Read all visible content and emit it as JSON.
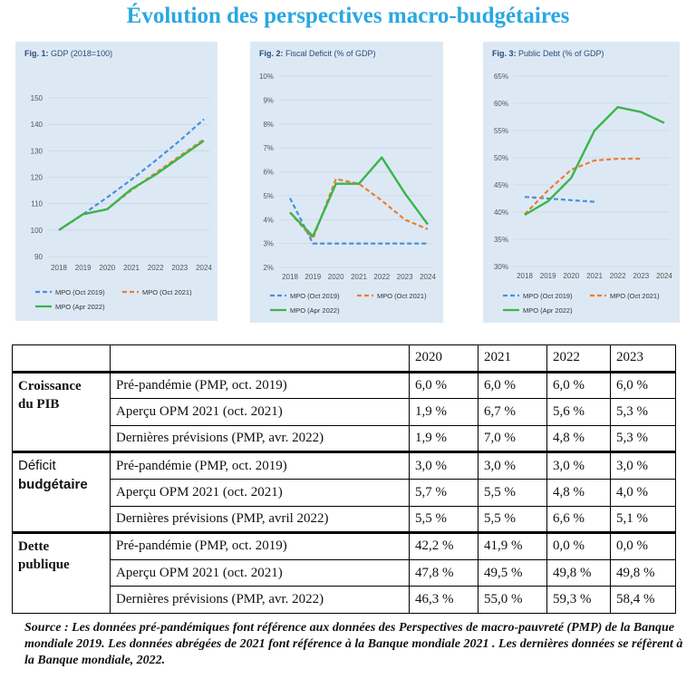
{
  "title": "Évolution des perspectives macro-budgétaires",
  "colors": {
    "oct2019": "#4a90d9",
    "oct2021": "#ed7d31",
    "apr2022": "#3cb44b",
    "panel_bg": "#dce9f5"
  },
  "chart_data": [
    {
      "type": "line",
      "fig_label": "Fig. 1:",
      "title": "GDP (2018=100)",
      "x": [
        "2018",
        "2019",
        "2020",
        "2021",
        "2022",
        "2023",
        "2024"
      ],
      "ylim": [
        90,
        150
      ],
      "yticks": [
        "90",
        "100",
        "110",
        "120",
        "130",
        "140",
        "150"
      ],
      "series": [
        {
          "name": "MPO (Oct 2019)",
          "style": "dashed",
          "color": "#4a90d9",
          "values": [
            100,
            106,
            112.4,
            119.1,
            126.3,
            133.8,
            141.9
          ]
        },
        {
          "name": "MPO (Oct 2021)",
          "style": "dashed",
          "color": "#ed7d31",
          "values": [
            100,
            106,
            107.9,
            115.1,
            121.6,
            128.0,
            134.3
          ]
        },
        {
          "name": "MPO (Apr 2022)",
          "style": "solid",
          "color": "#3cb44b",
          "values": [
            100,
            106,
            107.9,
            115.5,
            121.0,
            127.4,
            133.8
          ]
        }
      ]
    },
    {
      "type": "line",
      "fig_label": "Fig. 2:",
      "title": "Fiscal Deficit (% of GDP)",
      "x": [
        "2018",
        "2019",
        "2020",
        "2021",
        "2022",
        "2023",
        "2024"
      ],
      "ylim": [
        2,
        10
      ],
      "yticks": [
        "2%",
        "3%",
        "4%",
        "5%",
        "6%",
        "7%",
        "8%",
        "9%",
        "10%"
      ],
      "series": [
        {
          "name": "MPO (Oct 2019)",
          "style": "dashed",
          "color": "#4a90d9",
          "values": [
            4.9,
            3.0,
            3.0,
            3.0,
            3.0,
            3.0,
            3.0
          ]
        },
        {
          "name": "MPO (Oct 2021)",
          "style": "dashed",
          "color": "#ed7d31",
          "values": [
            4.3,
            3.2,
            5.7,
            5.5,
            4.8,
            4.0,
            3.6
          ]
        },
        {
          "name": "MPO (Apr 2022)",
          "style": "solid",
          "color": "#3cb44b",
          "values": [
            4.3,
            3.3,
            5.5,
            5.5,
            6.6,
            5.1,
            3.8
          ]
        }
      ]
    },
    {
      "type": "line",
      "fig_label": "Fig. 3:",
      "title": "Public Debt (% of GDP)",
      "x": [
        "2018",
        "2019",
        "2020",
        "2021",
        "2022",
        "2023",
        "2024"
      ],
      "ylim": [
        30,
        65
      ],
      "yticks": [
        "30%",
        "35%",
        "40%",
        "45%",
        "50%",
        "55%",
        "60%",
        "65%"
      ],
      "series": [
        {
          "name": "MPO (Oct 2019)",
          "style": "dashed",
          "color": "#4a90d9",
          "values": [
            42.8,
            42.5,
            42.2,
            41.9,
            null,
            null,
            null
          ]
        },
        {
          "name": "MPO (Oct 2021)",
          "style": "dashed",
          "color": "#ed7d31",
          "values": [
            39.6,
            44.0,
            47.8,
            49.5,
            49.8,
            49.8,
            null
          ]
        },
        {
          "name": "MPO (Apr 2022)",
          "style": "solid",
          "color": "#3cb44b",
          "values": [
            39.5,
            42.0,
            46.3,
            55.0,
            59.3,
            58.4,
            56.4
          ]
        }
      ]
    }
  ],
  "table": {
    "years": [
      "2020",
      "2021",
      "2022",
      "2023"
    ],
    "groups": [
      {
        "label_line1": "Croissance",
        "label_line2": "du PIB",
        "rows": [
          {
            "label": "Pré-pandémie (PMP, oct. 2019)",
            "values": [
              "6,0 %",
              "6,0 %",
              "6,0 %",
              "6,0 %"
            ]
          },
          {
            "label": "Aperçu OPM 2021 (oct. 2021)",
            "values": [
              "1,9 %",
              "6,7 %",
              "5,6 %",
              "5,3 %"
            ]
          },
          {
            "label": "Dernières prévisions (PMP, avr. 2022)",
            "values": [
              "1,9 %",
              "7,0 %",
              "4,8 %",
              "5,3 %"
            ]
          }
        ]
      },
      {
        "label_line1": "Déficit",
        "label_line2": "budgétaire",
        "rows": [
          {
            "label": "Pré-pandémie (PMP, oct. 2019)",
            "values": [
              "3,0 %",
              "3,0 %",
              "3,0 %",
              "3,0 %"
            ]
          },
          {
            "label": "Aperçu OPM 2021 (oct. 2021)",
            "values": [
              "5,7 %",
              "5,5 %",
              "4,8 %",
              "4,0 %"
            ]
          },
          {
            "label": "Dernières prévisions (PMP, avril 2022)",
            "values": [
              "5,5 %",
              "5,5 %",
              "6,6 %",
              "5,1 %"
            ]
          }
        ]
      },
      {
        "label_line1": "Dette",
        "label_line2": "publique",
        "rows": [
          {
            "label": "Pré-pandémie (PMP, oct. 2019)",
            "values": [
              "42,2 %",
              "41,9 %",
              "0,0 %",
              "0,0 %"
            ]
          },
          {
            "label": "Aperçu OPM 2021 (oct. 2021)",
            "values": [
              "47,8 %",
              "49,5 %",
              "49,8 %",
              "49,8 %"
            ]
          },
          {
            "label": "Dernières prévisions (PMP, avr. 2022)",
            "values": [
              "46,3 %",
              "55,0 %",
              "59,3 %",
              "58,4 %"
            ]
          }
        ]
      }
    ]
  },
  "source": "Source : Les données pré-pandémiques font référence aux données des Perspectives de macro-pauvreté (PMP) de la Banque mondiale 2019. Les  données abrégées de 2021 font référence à la Banque mondiale 2021  . Les dernières données se réfèrent à la Banque mondiale, 2022."
}
